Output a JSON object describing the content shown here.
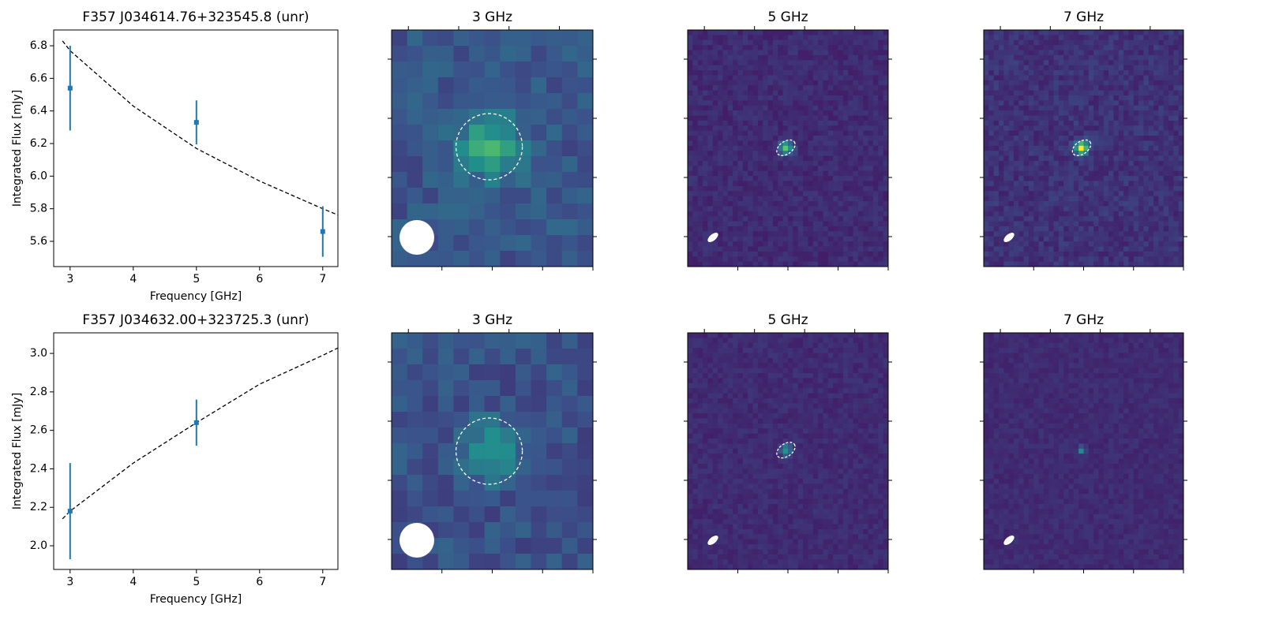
{
  "chart_data": [
    {
      "type": "errorbar",
      "title": "F357 J034614.76+323545.8 (unr)",
      "xlabel": "Frequency [GHz]",
      "ylabel": "Integrated Flux [mJy]",
      "x": [
        3,
        5,
        7
      ],
      "values": [
        6.54,
        6.33,
        5.66
      ],
      "errors": [
        0.26,
        0.135,
        0.155
      ],
      "color": "#1f77b4",
      "fit": {
        "x": [
          2.88,
          3,
          4,
          5,
          6,
          7,
          7.25
        ],
        "values": [
          6.83,
          6.77,
          6.43,
          6.17,
          5.97,
          5.8,
          5.76
        ],
        "color": "#000000"
      },
      "xlim": [
        2.74,
        7.24
      ],
      "xticks": [
        3,
        4,
        5,
        6,
        7
      ],
      "ylim": [
        5.445,
        6.897
      ],
      "yticks": [
        5.6,
        5.8,
        {
          "value": 6,
          "label": "6.0"
        },
        6.2,
        6.4,
        6.6,
        6.8
      ]
    },
    {
      "type": "image",
      "title": "3 GHz"
    },
    {
      "type": "image",
      "title": "5 GHz"
    },
    {
      "type": "image",
      "title": "7 GHz"
    },
    {
      "type": "errorbar",
      "title": "F357 J034632.00+323725.3 (unr)",
      "xlabel": "Frequency [GHz]",
      "ylabel": "Integrated Flux [mJy]",
      "x": [
        3,
        5
      ],
      "values": [
        2.18,
        2.64
      ],
      "errors": [
        0.25,
        0.12
      ],
      "color": "#1f77b4",
      "fit": {
        "x": [
          2.88,
          3,
          4,
          5,
          6,
          7,
          7.25
        ],
        "values": [
          2.14,
          2.18,
          2.43,
          2.64,
          2.84,
          2.99,
          3.03
        ],
        "color": "#000000"
      },
      "xlim": [
        2.74,
        7.24
      ],
      "xticks": [
        3,
        4,
        5,
        6,
        7
      ],
      "ylim": [
        1.877,
        3.107
      ],
      "yticks": [
        {
          "value": 2,
          "label": "2.0"
        },
        2.2,
        2.4,
        2.6,
        2.8,
        {
          "value": 3,
          "label": "3.0"
        }
      ]
    },
    {
      "type": "image",
      "title": "3 GHz"
    },
    {
      "type": "image",
      "title": "5 GHz"
    },
    {
      "type": "image",
      "title": "7 GHz"
    }
  ]
}
